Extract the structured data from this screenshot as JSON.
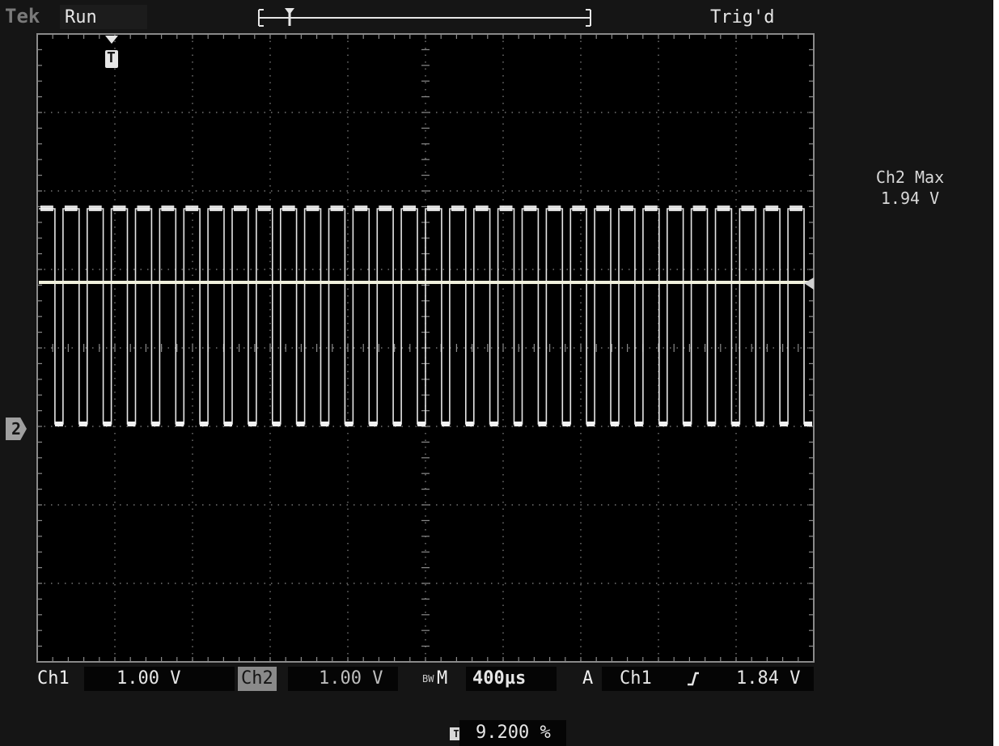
{
  "header": {
    "brand": "Tek",
    "status": "Run",
    "trigger_status": "Trig'd"
  },
  "measurement": {
    "label": "Ch2 Max",
    "value": "1.94 V"
  },
  "channel_marker": "2",
  "trigger_marker": "T",
  "footer": {
    "ch1_label": "Ch1",
    "ch1_scale": "1.00 V",
    "ch2_label": "Ch2",
    "ch2_scale": "1.00 V",
    "bw_label": "BW",
    "mode": "M",
    "timebase": "400µs",
    "trigger_source_label": "A",
    "trigger_channel": "Ch1",
    "trigger_slope": "rising-edge",
    "trigger_level": "1.84 V",
    "trigger_position": "9.200 %"
  },
  "waveform": {
    "pulse_count": 32,
    "high_level": "1.94 V",
    "channel": "Ch2",
    "color": "#f2f2f2",
    "reference_line_color": "#f0f0dc"
  },
  "colors": {
    "screen_background": "#000000",
    "panel_background": "#151515",
    "graticule": "#8a8a8a",
    "text": "#e6e6e6"
  }
}
